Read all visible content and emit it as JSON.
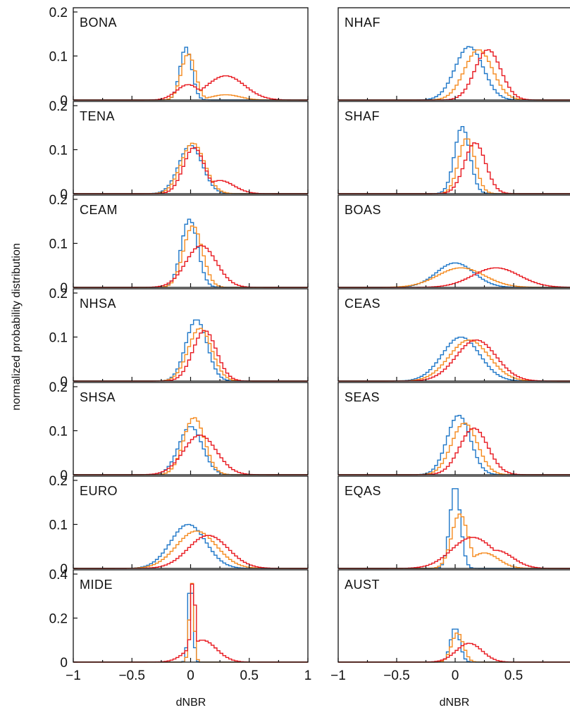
{
  "chart_data": [
    {
      "type": "line",
      "title": "BONA",
      "xlim": [
        -1,
        1
      ],
      "ylim": [
        0,
        0.2
      ],
      "yticks": [
        0,
        0.1,
        0.2
      ],
      "ytick_labels": [
        "0",
        "0.1",
        "0.2"
      ],
      "series": [
        {
          "color": "#e8181f",
          "peak_x": 0.3,
          "peak_y": 0.055,
          "sigma": 0.16,
          "second_peak_x": -0.02,
          "second_peak_y": 0.035,
          "second_sigma": 0.1
        },
        {
          "color": "#f58a1f",
          "peak_x": -0.02,
          "peak_y": 0.105,
          "sigma": 0.06,
          "tail_x": 0.3,
          "tail_y": 0.012
        },
        {
          "color": "#1f77c8",
          "peak_x": -0.04,
          "peak_y": 0.12,
          "sigma": 0.05
        }
      ]
    },
    {
      "type": "line",
      "title": "NHAF",
      "xlim": [
        -1,
        1
      ],
      "ylim": [
        0,
        0.14
      ],
      "yticks": [],
      "ytick_labels": [],
      "series": [
        {
          "color": "#e8181f",
          "peak_x": 0.28,
          "peak_y": 0.08,
          "sigma": 0.11
        },
        {
          "color": "#f58a1f",
          "peak_x": 0.2,
          "peak_y": 0.08,
          "sigma": 0.12
        },
        {
          "color": "#1f77c8",
          "peak_x": 0.12,
          "peak_y": 0.085,
          "sigma": 0.12
        }
      ]
    },
    {
      "type": "line",
      "title": "TENA",
      "xlim": [
        -1,
        1
      ],
      "ylim": [
        0,
        0.2
      ],
      "yticks": [
        0,
        0.1,
        0.2
      ],
      "ytick_labels": [
        "0",
        "0.1",
        "0.2"
      ],
      "series": [
        {
          "color": "#e8181f",
          "peak_x": 0.03,
          "peak_y": 0.105,
          "sigma": 0.09,
          "tail_x": 0.25,
          "tail_y": 0.03
        },
        {
          "color": "#f58a1f",
          "peak_x": 0.02,
          "peak_y": 0.115,
          "sigma": 0.1
        },
        {
          "color": "#1f77c8",
          "peak_x": 0.0,
          "peak_y": 0.11,
          "sigma": 0.1
        }
      ]
    },
    {
      "type": "line",
      "title": "SHAF",
      "xlim": [
        -1,
        1
      ],
      "ylim": [
        0,
        0.19
      ],
      "yticks": [],
      "ytick_labels": [],
      "series": [
        {
          "color": "#e8181f",
          "peak_x": 0.17,
          "peak_y": 0.11,
          "sigma": 0.09
        },
        {
          "color": "#f58a1f",
          "peak_x": 0.1,
          "peak_y": 0.12,
          "sigma": 0.07
        },
        {
          "color": "#1f77c8",
          "peak_x": 0.06,
          "peak_y": 0.145,
          "sigma": 0.065
        }
      ]
    },
    {
      "type": "line",
      "title": "CEAM",
      "xlim": [
        -1,
        1
      ],
      "ylim": [
        0,
        0.2
      ],
      "yticks": [
        0,
        0.1,
        0.2
      ],
      "ytick_labels": [
        "0",
        "0.1",
        "0.2"
      ],
      "series": [
        {
          "color": "#e8181f",
          "peak_x": 0.09,
          "peak_y": 0.095,
          "sigma": 0.13
        },
        {
          "color": "#f58a1f",
          "peak_x": 0.02,
          "peak_y": 0.14,
          "sigma": 0.08
        },
        {
          "color": "#1f77c8",
          "peak_x": -0.01,
          "peak_y": 0.155,
          "sigma": 0.07
        }
      ]
    },
    {
      "type": "line",
      "title": "BOAS",
      "xlim": [
        -1,
        1
      ],
      "ylim": [
        0,
        0.18
      ],
      "yticks": [],
      "ytick_labels": [],
      "series": [
        {
          "color": "#e8181f",
          "peak_x": 0.35,
          "peak_y": 0.04,
          "sigma": 0.2
        },
        {
          "color": "#f58a1f",
          "peak_x": 0.05,
          "peak_y": 0.04,
          "sigma": 0.2
        },
        {
          "color": "#1f77c8",
          "peak_x": 0.0,
          "peak_y": 0.05,
          "sigma": 0.16
        }
      ]
    },
    {
      "type": "line",
      "title": "NHSA",
      "xlim": [
        -1,
        1
      ],
      "ylim": [
        0,
        0.2
      ],
      "yticks": [
        0,
        0.1,
        0.2
      ],
      "ytick_labels": [
        "0",
        "0.1",
        "0.2"
      ],
      "series": [
        {
          "color": "#e8181f",
          "peak_x": 0.12,
          "peak_y": 0.115,
          "sigma": 0.1
        },
        {
          "color": "#f58a1f",
          "peak_x": 0.08,
          "peak_y": 0.12,
          "sigma": 0.1
        },
        {
          "color": "#1f77c8",
          "peak_x": 0.05,
          "peak_y": 0.14,
          "sigma": 0.09
        }
      ]
    },
    {
      "type": "line",
      "title": "CEAS",
      "xlim": [
        -1,
        1
      ],
      "ylim": [
        0,
        0.15
      ],
      "yticks": [],
      "ytick_labels": [],
      "series": [
        {
          "color": "#e8181f",
          "peak_x": 0.18,
          "peak_y": 0.07,
          "sigma": 0.17
        },
        {
          "color": "#f58a1f",
          "peak_x": 0.12,
          "peak_y": 0.07,
          "sigma": 0.17
        },
        {
          "color": "#1f77c8",
          "peak_x": 0.05,
          "peak_y": 0.075,
          "sigma": 0.16
        }
      ]
    },
    {
      "type": "line",
      "title": "SHSA",
      "xlim": [
        -1,
        1
      ],
      "ylim": [
        0,
        0.2
      ],
      "yticks": [
        0,
        0.1,
        0.2
      ],
      "ytick_labels": [
        "0",
        "0.1",
        "0.2"
      ],
      "series": [
        {
          "color": "#e8181f",
          "peak_x": 0.08,
          "peak_y": 0.09,
          "sigma": 0.14
        },
        {
          "color": "#f58a1f",
          "peak_x": 0.03,
          "peak_y": 0.13,
          "sigma": 0.09
        },
        {
          "color": "#1f77c8",
          "peak_x": 0.0,
          "peak_y": 0.11,
          "sigma": 0.1
        }
      ]
    },
    {
      "type": "line",
      "title": "SEAS",
      "xlim": [
        -1,
        1
      ],
      "ylim": [
        0,
        0.17
      ],
      "yticks": [],
      "ytick_labels": [],
      "series": [
        {
          "color": "#e8181f",
          "peak_x": 0.16,
          "peak_y": 0.09,
          "sigma": 0.12
        },
        {
          "color": "#f58a1f",
          "peak_x": 0.08,
          "peak_y": 0.1,
          "sigma": 0.11
        },
        {
          "color": "#1f77c8",
          "peak_x": 0.03,
          "peak_y": 0.115,
          "sigma": 0.1
        }
      ]
    },
    {
      "type": "line",
      "title": "EURO",
      "xlim": [
        -1,
        1
      ],
      "ylim": [
        0,
        0.2
      ],
      "yticks": [
        0,
        0.1,
        0.2
      ],
      "ytick_labels": [
        "0",
        "0.1",
        "0.2"
      ],
      "series": [
        {
          "color": "#e8181f",
          "peak_x": 0.15,
          "peak_y": 0.075,
          "sigma": 0.17
        },
        {
          "color": "#f58a1f",
          "peak_x": 0.05,
          "peak_y": 0.085,
          "sigma": 0.17
        },
        {
          "color": "#1f77c8",
          "peak_x": -0.02,
          "peak_y": 0.1,
          "sigma": 0.15
        }
      ]
    },
    {
      "type": "line",
      "title": "EQAS",
      "xlim": [
        -1,
        1
      ],
      "ylim": [
        0,
        0.17
      ],
      "yticks": [],
      "ytick_labels": [],
      "series": [
        {
          "color": "#e8181f",
          "peak_x": 0.15,
          "peak_y": 0.06,
          "sigma": 0.18,
          "second_peak_x": 0.35,
          "second_peak_y": 0.035,
          "second_sigma": 0.14
        },
        {
          "color": "#f58a1f",
          "peak_x": 0.04,
          "peak_y": 0.105,
          "sigma": 0.07,
          "tail_x": 0.25,
          "tail_y": 0.03
        },
        {
          "color": "#1f77c8",
          "peak_x": 0.0,
          "peak_y": 0.16,
          "sigma": 0.045
        }
      ]
    },
    {
      "type": "line",
      "title": "MIDE",
      "xlim": [
        -1,
        1
      ],
      "ylim": [
        0,
        0.4
      ],
      "yticks": [
        0,
        0.2,
        0.4
      ],
      "ytick_labels": [
        "0",
        "0.2",
        "0.4"
      ],
      "series": [
        {
          "color": "#e8181f",
          "peak_x": 0.02,
          "peak_y": 0.38,
          "sigma": 0.02,
          "tail_x": 0.1,
          "tail_y": 0.1
        },
        {
          "color": "#f58a1f",
          "peak_x": 0.01,
          "peak_y": 0.36,
          "sigma": 0.02
        },
        {
          "color": "#1f77c8",
          "peak_x": 0.0,
          "peak_y": 0.38,
          "sigma": 0.02
        }
      ]
    },
    {
      "type": "line",
      "title": "AUST",
      "xlim": [
        -1,
        1
      ],
      "ylim": [
        0,
        0.42
      ],
      "yticks": [],
      "ytick_labels": [],
      "series": [
        {
          "color": "#e8181f",
          "peak_x": 0.12,
          "peak_y": 0.09,
          "sigma": 0.11
        },
        {
          "color": "#f58a1f",
          "peak_x": 0.02,
          "peak_y": 0.14,
          "sigma": 0.05
        },
        {
          "color": "#1f77c8",
          "peak_x": 0.0,
          "peak_y": 0.165,
          "sigma": 0.04
        }
      ]
    }
  ],
  "axes": {
    "ylabel": "normalized probability distribution",
    "xlabel": "dNBR",
    "xtick_values": [
      -1,
      -0.5,
      0,
      0.5,
      1
    ],
    "xtick_labels_left": [
      "−1",
      "−0.5",
      "0",
      "0.5",
      "1"
    ],
    "xtick_labels_right": [
      "−1",
      "−0.5",
      "0",
      "0.5"
    ]
  }
}
